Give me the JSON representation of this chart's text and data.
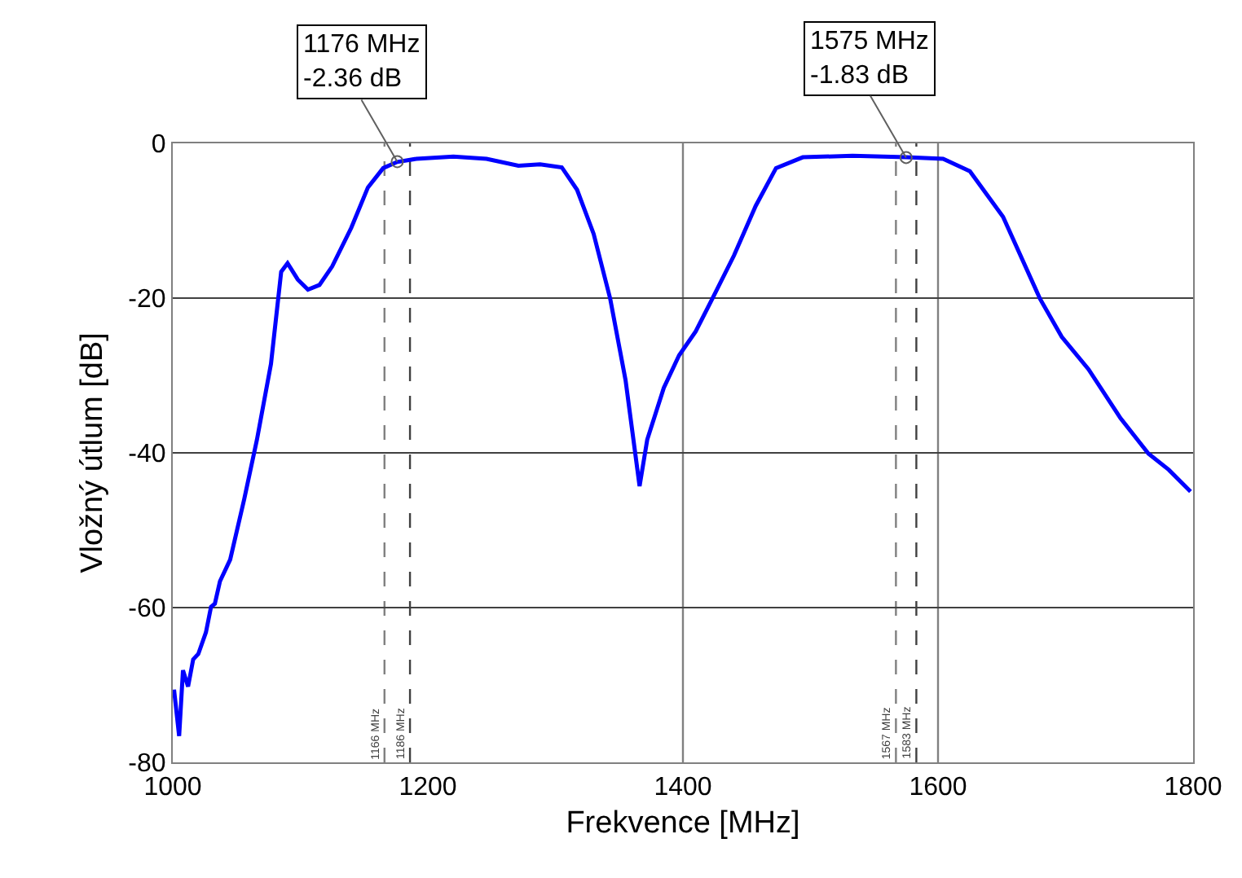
{
  "chart_data": {
    "type": "line",
    "xlabel": "Frekvence [MHz]",
    "ylabel": "Vložný útlum [dB]",
    "x": [
      1001,
      1005,
      1008,
      1012,
      1016,
      1020,
      1026,
      1030,
      1033,
      1037,
      1045,
      1056,
      1066,
      1077,
      1085,
      1090,
      1098,
      1106,
      1115,
      1125,
      1140,
      1153,
      1165,
      1176,
      1191,
      1220,
      1246,
      1271,
      1288,
      1305,
      1317,
      1330,
      1343,
      1355,
      1366,
      1372,
      1385,
      1397,
      1410,
      1423,
      1440,
      1457,
      1473,
      1494,
      1533,
      1575,
      1604,
      1625,
      1651,
      1680,
      1697,
      1718,
      1743,
      1765,
      1781,
      1798
    ],
    "series": [
      {
        "color": "#0000ff",
        "values": [
          -70.6,
          -76.6,
          -68.1,
          -70.2,
          -66.7,
          -66,
          -63.2,
          -59.9,
          -59.5,
          -56.6,
          -53.8,
          -46,
          -38.3,
          -28.5,
          -16.6,
          -15.5,
          -17.6,
          -18.9,
          -18.3,
          -15.9,
          -10.9,
          -5.7,
          -3.2,
          -2.4,
          -2.0,
          -1.7,
          -2.0,
          -2.9,
          -2.7,
          -3.1,
          -6.0,
          -11.7,
          -20.1,
          -30.6,
          -44.3,
          -38.3,
          -31.6,
          -27.4,
          -24.3,
          -20.1,
          -14.5,
          -8.1,
          -3.2,
          -1.8,
          -1.6,
          -1.8,
          -2.0,
          -3.6,
          -9.5,
          -20.1,
          -25,
          -29.2,
          -35.5,
          -40.1,
          -42.2,
          -45
        ]
      }
    ],
    "xlim": [
      1000,
      1800
    ],
    "ylim": [
      -80,
      0
    ],
    "xticks": [
      1000,
      1200,
      1400,
      1600,
      1800
    ],
    "yticks": [
      -80,
      -60,
      -40,
      -20,
      0
    ],
    "grid": "y",
    "marker": "none",
    "line_style": "solid",
    "ref_lines": [
      {
        "axis": "x",
        "value": 1400,
        "color": "#808080",
        "line_style": "solid"
      },
      {
        "axis": "x",
        "value": 1600,
        "color": "#808080",
        "line_style": "solid"
      },
      {
        "axis": "x",
        "value": 1166,
        "label": "1166 MHz",
        "color": "#808080",
        "line_style": "dashed"
      },
      {
        "axis": "x",
        "value": 1186,
        "label": "1186 MHz",
        "color": "#404040",
        "line_style": "dashed"
      },
      {
        "axis": "x",
        "value": 1567,
        "label": "1567 MHz",
        "color": "#808080",
        "line_style": "dashed"
      },
      {
        "axis": "x",
        "value": 1583,
        "label": "1583 MHz",
        "color": "#404040",
        "line_style": "dashed"
      }
    ],
    "annotations": [
      {
        "text": "1176 MHz\n-2.36 dB",
        "x": 1176,
        "y": -2.36
      },
      {
        "text": "1575 MHz\n-1.83 dB",
        "x": 1575,
        "y": -1.83
      }
    ]
  }
}
